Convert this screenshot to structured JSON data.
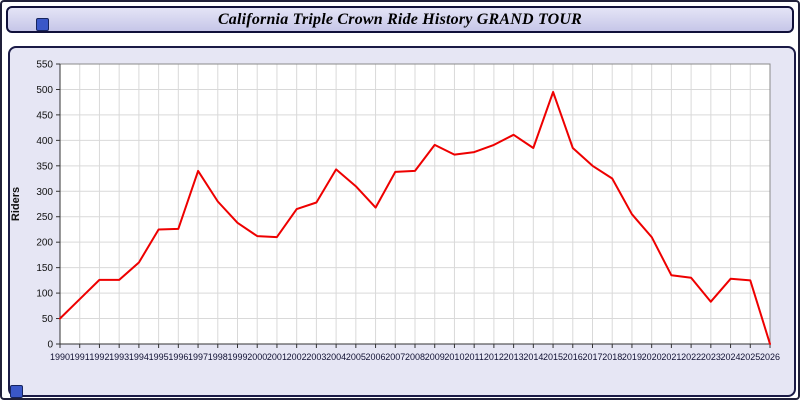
{
  "window": {
    "title": "California Triple Crown Ride History GRAND TOUR"
  },
  "icons": {
    "top_left": "blue-square-icon",
    "bottom_left": "blue-square-icon"
  },
  "colors": {
    "line": "#ee0000",
    "panel_bg": "#e6e6f4",
    "plot_bg": "#ffffff",
    "grid": "#d9d9d9",
    "border": "#1a1a46"
  },
  "chart_data": {
    "type": "line",
    "title": "California Triple Crown Ride History GRAND TOUR",
    "xlabel": "",
    "ylabel": "Riders",
    "ylim": [
      0,
      550
    ],
    "ytick_step": 50,
    "grid": true,
    "legend_position": "none",
    "x": [
      1990,
      1991,
      1992,
      1993,
      1994,
      1995,
      1996,
      1997,
      1998,
      1999,
      2000,
      2001,
      2002,
      2003,
      2004,
      2005,
      2006,
      2007,
      2008,
      2009,
      2010,
      2011,
      2012,
      2013,
      2014,
      2015,
      2016,
      2017,
      2018,
      2019,
      2020,
      2021,
      2022,
      2023,
      2024,
      2025,
      2026
    ],
    "series": [
      {
        "name": "Riders",
        "color": "#ee0000",
        "values": [
          50,
          88,
          126,
          126,
          160,
          225,
          226,
          340,
          280,
          238,
          212,
          210,
          265,
          278,
          343,
          310,
          268,
          338,
          340,
          391,
          372,
          377,
          391,
          411,
          385,
          495,
          385,
          350,
          325,
          255,
          210,
          135,
          130,
          83,
          128,
          125,
          0
        ]
      }
    ]
  }
}
